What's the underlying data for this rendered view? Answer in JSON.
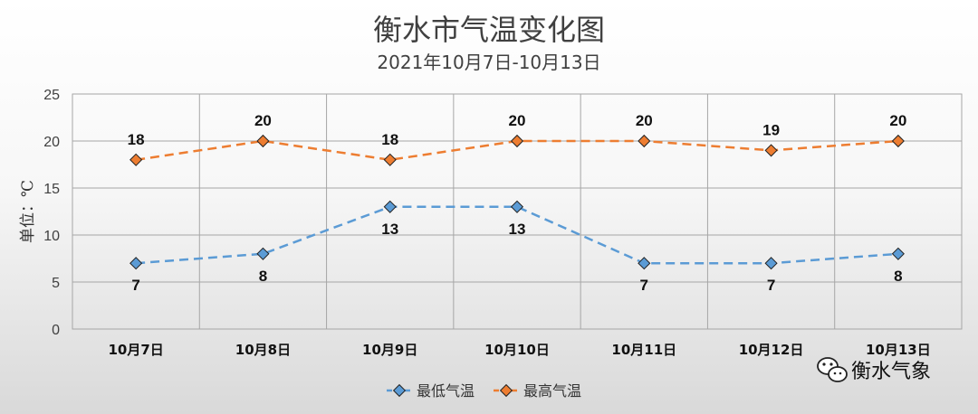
{
  "chart_data": {
    "type": "line",
    "title": "衡水市气温变化图",
    "subtitle": "2021年10月7日-10月13日",
    "ylabel": "单位：℃",
    "xlabel": "",
    "categories": [
      "10月7日",
      "10月8日",
      "10月9日",
      "10月10日",
      "10月11日",
      "10月12日",
      "10月13日"
    ],
    "ylim": [
      0,
      25
    ],
    "yticks": [
      0,
      5,
      10,
      15,
      20,
      25
    ],
    "grid": true,
    "legend_position": "bottom",
    "series": [
      {
        "name": "最低气温",
        "values": [
          7,
          8,
          13,
          13,
          7,
          7,
          8
        ],
        "color": "#5b9bd5",
        "label_position": "below"
      },
      {
        "name": "最高气温",
        "values": [
          18,
          20,
          18,
          20,
          20,
          19,
          20
        ],
        "color": "#ed7d31",
        "label_position": "above"
      }
    ]
  },
  "watermark": {
    "text": "衡水气象",
    "icon": "wechat-icon"
  }
}
